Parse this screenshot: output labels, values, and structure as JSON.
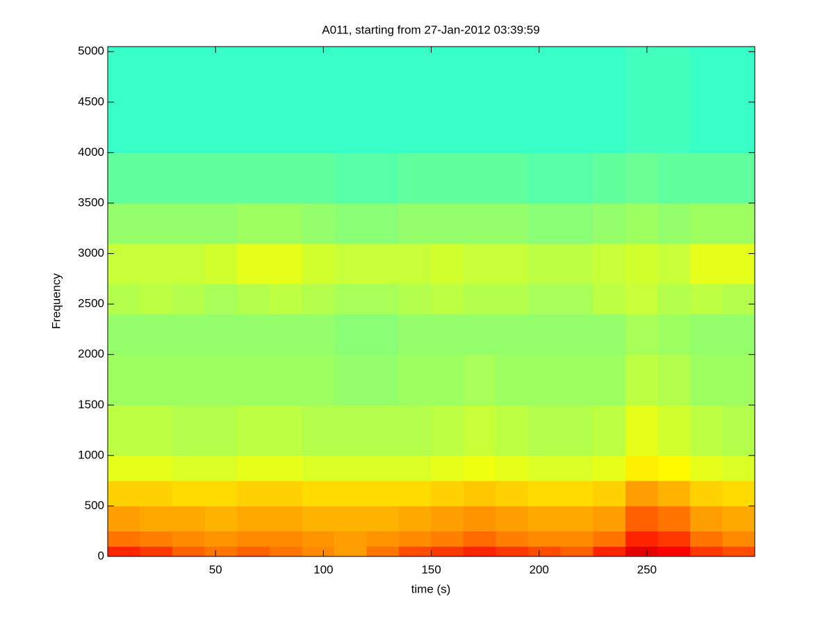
{
  "chart_data": {
    "type": "heatmap",
    "title": "A011, starting from 27-Jan-2012 03:39:59",
    "xlabel": "time (s)",
    "ylabel": "Frequency",
    "colormap": "jet",
    "clim": [
      0,
      1
    ],
    "xlim": [
      0,
      300
    ],
    "ylim": [
      0,
      5050
    ],
    "xticks": [
      50,
      100,
      150,
      200,
      250
    ],
    "yticks": [
      0,
      500,
      1000,
      1500,
      2000,
      2500,
      3000,
      3500,
      4000,
      4500,
      5000
    ],
    "x_bins": [
      0,
      15,
      30,
      45,
      60,
      75,
      90,
      105,
      120,
      135,
      150,
      165,
      180,
      195,
      210,
      225,
      240,
      255,
      270,
      285,
      300
    ],
    "y_bins": [
      0,
      100,
      250,
      500,
      750,
      1000,
      1500,
      2000,
      2400,
      2700,
      3100,
      3500,
      4000,
      5050
    ],
    "values": [
      [
        0.84,
        0.82,
        0.78,
        0.76,
        0.78,
        0.76,
        0.74,
        0.72,
        0.76,
        0.8,
        0.82,
        0.84,
        0.82,
        0.8,
        0.78,
        0.84,
        0.9,
        0.88,
        0.82,
        0.8
      ],
      [
        0.76,
        0.75,
        0.74,
        0.73,
        0.74,
        0.74,
        0.73,
        0.72,
        0.73,
        0.74,
        0.75,
        0.77,
        0.75,
        0.74,
        0.74,
        0.76,
        0.84,
        0.82,
        0.76,
        0.74
      ],
      [
        0.72,
        0.71,
        0.71,
        0.7,
        0.71,
        0.71,
        0.7,
        0.7,
        0.7,
        0.71,
        0.72,
        0.73,
        0.72,
        0.71,
        0.71,
        0.72,
        0.78,
        0.76,
        0.72,
        0.71
      ],
      [
        0.67,
        0.67,
        0.66,
        0.66,
        0.67,
        0.67,
        0.66,
        0.66,
        0.66,
        0.66,
        0.67,
        0.68,
        0.67,
        0.66,
        0.66,
        0.67,
        0.72,
        0.7,
        0.67,
        0.66
      ],
      [
        0.6,
        0.6,
        0.59,
        0.59,
        0.6,
        0.6,
        0.59,
        0.59,
        0.59,
        0.59,
        0.6,
        0.61,
        0.6,
        0.59,
        0.59,
        0.6,
        0.64,
        0.63,
        0.6,
        0.59
      ],
      [
        0.56,
        0.56,
        0.55,
        0.55,
        0.56,
        0.56,
        0.55,
        0.55,
        0.55,
        0.55,
        0.56,
        0.57,
        0.56,
        0.55,
        0.55,
        0.56,
        0.6,
        0.58,
        0.56,
        0.55
      ],
      [
        0.53,
        0.53,
        0.53,
        0.53,
        0.53,
        0.53,
        0.53,
        0.52,
        0.52,
        0.53,
        0.53,
        0.54,
        0.53,
        0.53,
        0.53,
        0.53,
        0.56,
        0.55,
        0.53,
        0.53
      ],
      [
        0.52,
        0.52,
        0.52,
        0.52,
        0.52,
        0.52,
        0.52,
        0.51,
        0.51,
        0.52,
        0.52,
        0.52,
        0.52,
        0.52,
        0.52,
        0.52,
        0.54,
        0.53,
        0.52,
        0.52
      ],
      [
        0.55,
        0.56,
        0.55,
        0.54,
        0.55,
        0.56,
        0.55,
        0.54,
        0.54,
        0.55,
        0.56,
        0.55,
        0.55,
        0.54,
        0.54,
        0.56,
        0.57,
        0.55,
        0.56,
        0.55
      ],
      [
        0.57,
        0.57,
        0.57,
        0.58,
        0.6,
        0.6,
        0.58,
        0.57,
        0.57,
        0.57,
        0.58,
        0.57,
        0.57,
        0.56,
        0.56,
        0.57,
        0.58,
        0.57,
        0.6,
        0.6
      ],
      [
        0.52,
        0.52,
        0.52,
        0.52,
        0.53,
        0.53,
        0.52,
        0.51,
        0.51,
        0.52,
        0.52,
        0.52,
        0.52,
        0.51,
        0.51,
        0.52,
        0.53,
        0.52,
        0.53,
        0.53
      ],
      [
        0.47,
        0.47,
        0.47,
        0.47,
        0.47,
        0.47,
        0.47,
        0.46,
        0.46,
        0.47,
        0.47,
        0.47,
        0.47,
        0.46,
        0.46,
        0.47,
        0.48,
        0.47,
        0.47,
        0.47
      ],
      [
        0.43,
        0.43,
        0.43,
        0.43,
        0.43,
        0.43,
        0.43,
        0.43,
        0.43,
        0.43,
        0.43,
        0.43,
        0.43,
        0.43,
        0.43,
        0.43,
        0.44,
        0.44,
        0.43,
        0.43
      ]
    ]
  }
}
